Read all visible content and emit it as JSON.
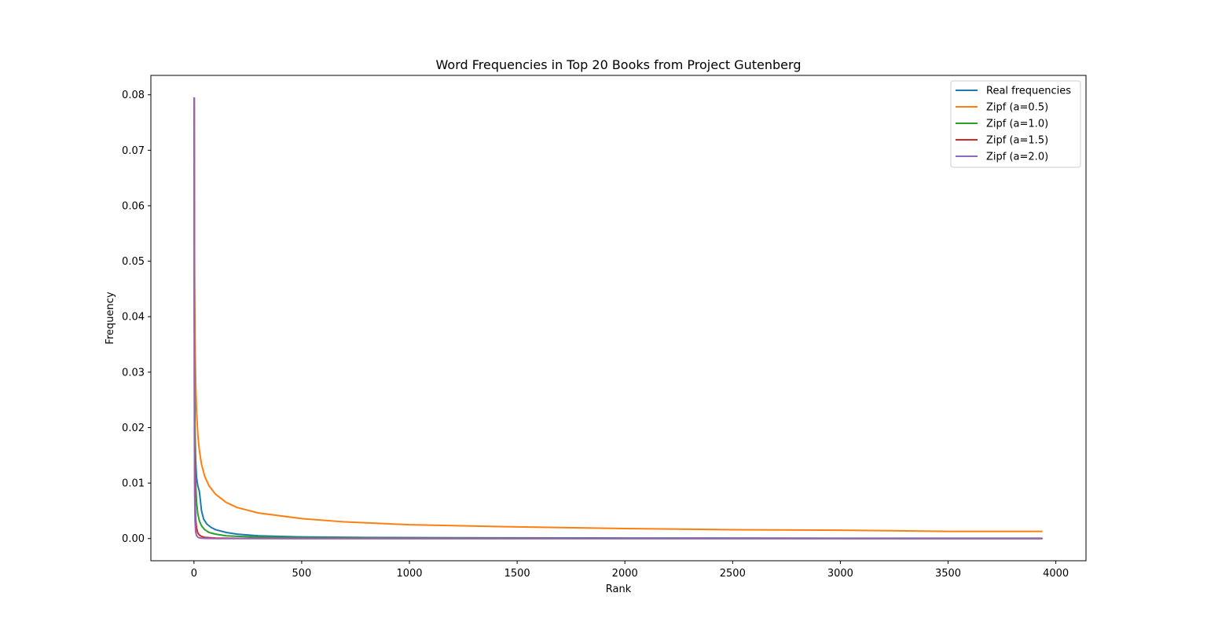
{
  "chart_data": {
    "type": "line",
    "title": "Word Frequencies in Top 20 Books from Project Gutenberg",
    "xlabel": "Rank",
    "ylabel": "Frequency",
    "xlim": [
      -200,
      4140
    ],
    "ylim": [
      -0.004,
      0.0835
    ],
    "xticks": [
      0,
      500,
      1000,
      1500,
      2000,
      2500,
      3000,
      3500,
      4000
    ],
    "yticks": [
      0.0,
      0.01,
      0.02,
      0.03,
      0.04,
      0.05,
      0.06,
      0.07,
      0.08
    ],
    "ytick_labels": [
      "0.00",
      "0.01",
      "0.02",
      "0.03",
      "0.04",
      "0.05",
      "0.06",
      "0.07",
      "0.08"
    ],
    "grid": false,
    "legend_position": "top-right",
    "series": [
      {
        "name": "Real frequencies",
        "color": "#1f77b4",
        "x": [
          1,
          2,
          3,
          5,
          8,
          12,
          18,
          25,
          30,
          35,
          45,
          60,
          80,
          100,
          150,
          200,
          300,
          500,
          800,
          1200,
          2000,
          3000,
          3938
        ],
        "y": [
          0.0795,
          0.045,
          0.028,
          0.019,
          0.014,
          0.011,
          0.0095,
          0.0085,
          0.0068,
          0.005,
          0.0035,
          0.0026,
          0.002,
          0.0016,
          0.0011,
          0.0008,
          0.0005,
          0.0003,
          0.0002,
          0.00014,
          9e-05,
          6e-05,
          5e-05
        ]
      },
      {
        "name": "Zipf (a=0.5)",
        "color": "#ff7f0e",
        "x": [
          1,
          2,
          3,
          5,
          8,
          12,
          18,
          25,
          35,
          50,
          70,
          100,
          150,
          200,
          300,
          500,
          700,
          1000,
          1500,
          2000,
          2500,
          3000,
          3500,
          3938
        ],
        "y": [
          0.0795,
          0.0562,
          0.0459,
          0.0356,
          0.0281,
          0.0229,
          0.0187,
          0.0159,
          0.0134,
          0.0112,
          0.0095,
          0.008,
          0.0065,
          0.0056,
          0.0046,
          0.0036,
          0.003,
          0.0025,
          0.0021,
          0.0018,
          0.0016,
          0.0015,
          0.0013,
          0.0013
        ]
      },
      {
        "name": "Zipf (a=1.0)",
        "color": "#2ca02c",
        "x": [
          1,
          2,
          3,
          5,
          8,
          12,
          18,
          25,
          35,
          50,
          70,
          100,
          150,
          200,
          300,
          500,
          1000,
          2000,
          3000,
          3938
        ],
        "y": [
          0.0795,
          0.0398,
          0.0265,
          0.0159,
          0.0099,
          0.0066,
          0.0044,
          0.0032,
          0.0023,
          0.0016,
          0.0011,
          0.0008,
          0.0005,
          0.0004,
          0.00026,
          0.00016,
          8e-05,
          4e-05,
          2.7e-05,
          2e-05
        ]
      },
      {
        "name": "Zipf (a=1.5)",
        "color": "#d62728",
        "x": [
          1,
          2,
          3,
          5,
          8,
          12,
          18,
          25,
          35,
          50,
          100,
          200,
          500,
          1000,
          3938
        ],
        "y": [
          0.0795,
          0.0281,
          0.0153,
          0.0071,
          0.0035,
          0.0019,
          0.001,
          0.00064,
          0.00038,
          0.00022,
          8e-05,
          3e-05,
          7e-06,
          2.5e-06,
          3e-07
        ]
      },
      {
        "name": "Zipf (a=2.0)",
        "color": "#9467bd",
        "x": [
          1,
          2,
          3,
          5,
          8,
          12,
          18,
          25,
          35,
          50,
          100,
          200,
          500,
          1000,
          3938
        ],
        "y": [
          0.0795,
          0.0199,
          0.0088,
          0.0032,
          0.0012,
          0.00055,
          0.00025,
          0.00013,
          6.5e-05,
          3e-05,
          8e-06,
          2e-06,
          3e-07,
          1e-07,
          0.0
        ]
      }
    ]
  }
}
